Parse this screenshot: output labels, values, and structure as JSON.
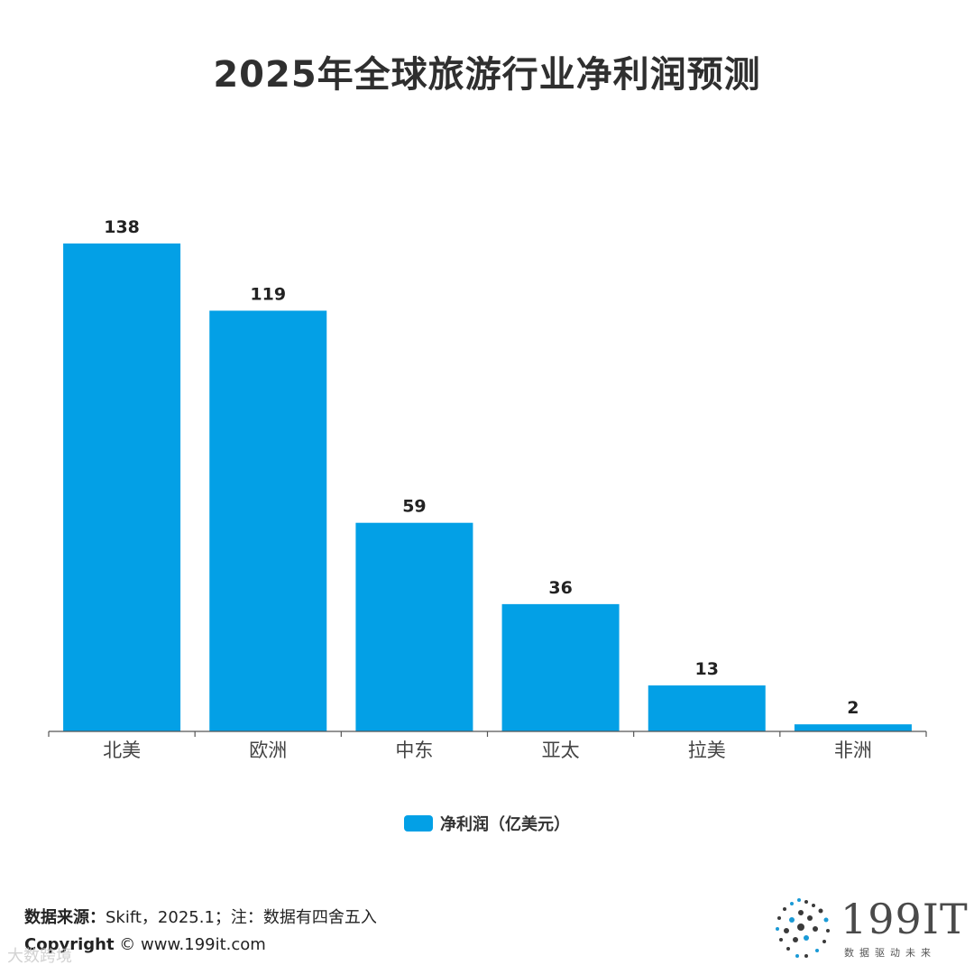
{
  "title": "2025年全球旅游行业净利润预测",
  "chart_data": {
    "type": "bar",
    "title": "2025年全球旅游行业净利润预测",
    "categories": [
      "北美",
      "欧洲",
      "中东",
      "亚太",
      "拉美",
      "非洲"
    ],
    "series": [
      {
        "name": "净利润（亿美元）",
        "values": [
          138,
          119,
          59,
          36,
          13,
          2
        ],
        "color": "#03a0e6"
      }
    ],
    "legend_position": "bottom-center",
    "grid": false,
    "ylim": [
      0,
      138
    ]
  },
  "legend": {
    "label": "净利润（亿美元）"
  },
  "footer": {
    "source_label": "数据来源：",
    "source_text": "Skift，2025.1；注：数据有四舍五入",
    "copyright_label": "Copyright",
    "copyright_text": "© www.199it.com",
    "watermark": "大数跨境"
  },
  "logo": {
    "text": "199IT",
    "subtitle": "数据驱动未来",
    "accent_color": "#1a9ad6"
  }
}
